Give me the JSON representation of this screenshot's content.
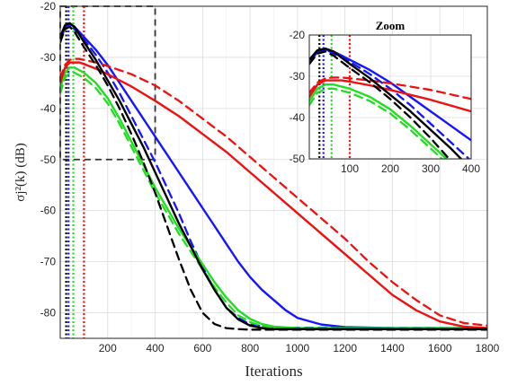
{
  "chart_data": [
    {
      "type": "line",
      "title": "",
      "xlabel": "Iterations",
      "ylabel": "σj²(k) (dB)",
      "xlim": [
        0,
        1800
      ],
      "ylim": [
        -85,
        -20
      ],
      "xticks": [
        200,
        400,
        600,
        800,
        1000,
        1200,
        1400,
        1600,
        1800
      ],
      "yticks": [
        -80,
        -70,
        -60,
        -50,
        -40,
        -30,
        -20
      ],
      "grid": true,
      "zoom_box": {
        "x": [
          0,
          400
        ],
        "y": [
          -50,
          -20
        ]
      },
      "colors": {
        "blue": "#1515ff",
        "green": "#22dd22",
        "red": "#ee1111",
        "black": "#000000"
      },
      "series": [
        {
          "color": "blue",
          "dash": "solid",
          "x": [
            0,
            20,
            40,
            60,
            80,
            100,
            150,
            200,
            250,
            300,
            350,
            400,
            450,
            500,
            550,
            600,
            650,
            700,
            750,
            800,
            850,
            900,
            950,
            1000,
            1100,
            1200,
            1400,
            1800
          ],
          "y": [
            -27,
            -24,
            -23.5,
            -24,
            -25,
            -26,
            -28.5,
            -31.5,
            -35,
            -38.5,
            -42,
            -45.5,
            -49,
            -52.5,
            -56,
            -59.5,
            -63,
            -66.5,
            -70,
            -73,
            -75.5,
            -77.5,
            -79.5,
            -81,
            -82.3,
            -82.8,
            -83,
            -83
          ]
        },
        {
          "color": "blue",
          "dash": "dashed",
          "x": [
            0,
            20,
            40,
            60,
            80,
            100,
            150,
            200,
            250,
            300,
            350,
            400,
            450,
            500,
            550,
            600,
            650,
            700,
            750,
            800,
            900,
            1800
          ],
          "y": [
            -27,
            -24,
            -23.5,
            -24.5,
            -25.5,
            -26.5,
            -29.5,
            -33,
            -37,
            -41.5,
            -46,
            -50.5,
            -55.5,
            -60.5,
            -66,
            -71,
            -75.5,
            -79,
            -81,
            -82.3,
            -82.9,
            -83
          ]
        },
        {
          "color": "green",
          "dash": "solid",
          "x": [
            0,
            20,
            40,
            60,
            80,
            100,
            150,
            200,
            250,
            300,
            350,
            400,
            450,
            500,
            550,
            600,
            650,
            700,
            750,
            800,
            850,
            900,
            1000,
            1100,
            1800
          ],
          "y": [
            -36,
            -33,
            -32,
            -32,
            -32.5,
            -33,
            -35,
            -38,
            -42,
            -46.5,
            -51,
            -55.5,
            -59.5,
            -63.5,
            -67,
            -70.5,
            -74,
            -77,
            -79.5,
            -81.2,
            -82.2,
            -82.7,
            -83,
            -83,
            -83
          ]
        },
        {
          "color": "green",
          "dash": "dashed",
          "x": [
            0,
            20,
            40,
            60,
            80,
            100,
            150,
            200,
            250,
            300,
            350,
            400,
            450,
            500,
            550,
            600,
            650,
            700,
            750,
            800,
            850,
            900,
            1000,
            1800
          ],
          "y": [
            -37,
            -34,
            -33,
            -33,
            -33.5,
            -34,
            -36,
            -39,
            -43,
            -47.5,
            -52,
            -56.5,
            -60.5,
            -64.5,
            -68,
            -71.5,
            -75,
            -78,
            -80.5,
            -81.8,
            -82.6,
            -82.9,
            -83,
            -83
          ]
        },
        {
          "color": "red",
          "dash": "solid",
          "x": [
            0,
            20,
            40,
            60,
            80,
            100,
            150,
            200,
            300,
            400,
            500,
            600,
            700,
            800,
            900,
            1000,
            1100,
            1200,
            1300,
            1400,
            1500,
            1600,
            1700,
            1800
          ],
          "y": [
            -35,
            -32,
            -31,
            -31,
            -31,
            -31.3,
            -32.2,
            -33.3,
            -35.7,
            -38.5,
            -41.5,
            -45,
            -48.5,
            -52.5,
            -56.5,
            -60.5,
            -64.5,
            -68.5,
            -72.5,
            -76.5,
            -79.5,
            -81.7,
            -82.7,
            -83
          ]
        },
        {
          "color": "red",
          "dash": "dashed",
          "x": [
            0,
            20,
            40,
            60,
            80,
            100,
            150,
            200,
            300,
            400,
            500,
            600,
            700,
            800,
            900,
            1000,
            1100,
            1200,
            1300,
            1400,
            1500,
            1600,
            1700,
            1800
          ],
          "y": [
            -34,
            -31.5,
            -30.5,
            -30.3,
            -30.3,
            -30.5,
            -31,
            -31.7,
            -33.3,
            -35.5,
            -38.5,
            -42,
            -45.5,
            -49.5,
            -53.5,
            -57.5,
            -61.5,
            -65.5,
            -70,
            -74,
            -77.5,
            -80.5,
            -82,
            -82.5
          ]
        },
        {
          "color": "black",
          "dash": "solid",
          "x": [
            0,
            20,
            40,
            60,
            80,
            100,
            150,
            200,
            250,
            300,
            350,
            400,
            450,
            500,
            550,
            600,
            650,
            700,
            750,
            800,
            850,
            900,
            1000,
            1800
          ],
          "y": [
            -26,
            -23.7,
            -23.3,
            -24,
            -25.5,
            -27,
            -30.5,
            -34.5,
            -38.5,
            -43,
            -47.5,
            -52.5,
            -57.5,
            -62.5,
            -67,
            -71.5,
            -75.5,
            -79,
            -81.3,
            -82.5,
            -83,
            -83.2,
            -83.2,
            -83.2
          ]
        },
        {
          "color": "black",
          "dash": "dashed",
          "x": [
            0,
            20,
            40,
            60,
            80,
            100,
            150,
            200,
            250,
            300,
            350,
            400,
            450,
            500,
            550,
            600,
            650,
            700,
            750,
            800,
            1800
          ],
          "y": [
            -27,
            -24.5,
            -24,
            -25,
            -26.5,
            -28,
            -31.5,
            -35.5,
            -40,
            -45,
            -50.5,
            -56.5,
            -63,
            -69.5,
            -75.5,
            -80,
            -82.2,
            -83,
            -83.2,
            -83.3,
            -83.3
          ]
        }
      ],
      "vlines": [
        {
          "x": 25,
          "color": "black"
        },
        {
          "x": 35,
          "color": "blue"
        },
        {
          "x": 55,
          "color": "green"
        },
        {
          "x": 100,
          "color": "red"
        }
      ]
    },
    {
      "type": "line",
      "title": "Zoom",
      "xlim": [
        0,
        400
      ],
      "ylim": [
        -50,
        -20
      ],
      "xticks": [
        100,
        200,
        300,
        400
      ],
      "yticks": [
        -50,
        -40,
        -30,
        -20
      ],
      "grid": true
    }
  ]
}
